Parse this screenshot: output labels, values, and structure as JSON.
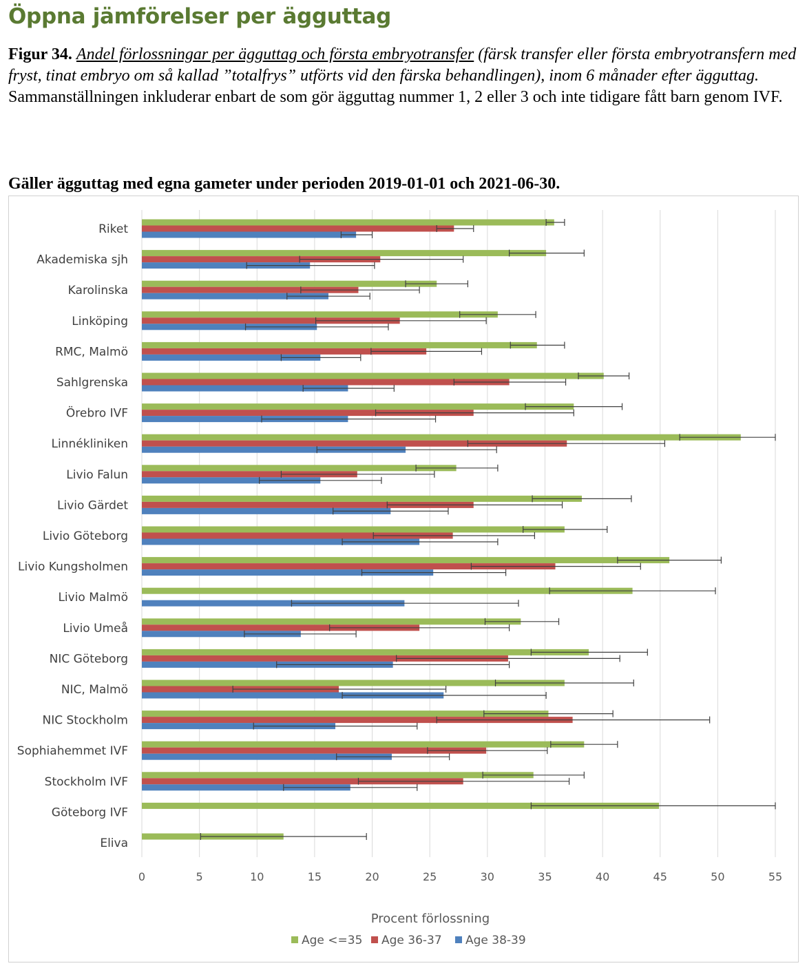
{
  "header": {
    "title": "Öppna jämförelser per ägguttag",
    "figure_label": "Figur 34.",
    "figure_title": "Andel förlossningar per ägguttag och första embryotransfer",
    "figure_desc": " (färsk transfer eller första embryotransfern med fryst, tinat embryo om så kallad ”totalfrys” utförts vid den färska behandlingen), inom 6 månader efter ägguttag.",
    "scope": "Sammanställningen inkluderar enbart de som gör ägguttag nummer 1, 2 eller 3 och inte tidigare fått barn genom IVF.",
    "period": "Gäller ägguttag med egna gameter under perioden 2019-01-01 och 2021-06-30."
  },
  "colors": {
    "age_le35": "#9bbb59",
    "age_36_37": "#c0504d",
    "age_38_39": "#4f81bd",
    "grid": "#d9d9d9",
    "error_bar": "#404040",
    "text": "#404040"
  },
  "chart_data": {
    "type": "bar",
    "orientation": "horizontal",
    "title": "",
    "xlabel": "Procent förlossning",
    "ylabel": "",
    "xlim": [
      0,
      55
    ],
    "xticks": [
      0,
      5,
      10,
      15,
      20,
      25,
      30,
      35,
      40,
      45,
      50,
      55
    ],
    "grid": "vertical",
    "legend_position": "bottom",
    "categories": [
      "Riket",
      "Akademiska sjh",
      "Karolinska",
      "Linköping",
      "RMC, Malmö",
      "Sahlgrenska",
      "Örebro IVF",
      "Linnékliniken",
      "Livio Falun",
      "Livio Gärdet",
      "Livio Göteborg",
      "Livio Kungsholmen",
      "Livio Malmö",
      "Livio Umeå",
      "NIC Göteborg",
      "NIC, Malmö",
      "NIC Stockholm",
      "Sophiahemmet IVF",
      "Stockholm IVF",
      "Göteborg IVF",
      "Eliva"
    ],
    "series": [
      {
        "name": "Age <=35",
        "values": [
          35.8,
          35.1,
          25.6,
          30.9,
          34.3,
          40.1,
          37.5,
          52.0,
          27.3,
          38.2,
          36.7,
          45.8,
          42.6,
          32.9,
          38.8,
          36.7,
          35.3,
          38.4,
          34.0,
          44.9,
          12.3
        ],
        "err_low": [
          35.1,
          31.9,
          22.9,
          27.6,
          32.0,
          37.9,
          33.3,
          46.7,
          23.8,
          33.9,
          33.1,
          41.3,
          35.4,
          29.8,
          33.8,
          30.7,
          29.7,
          35.5,
          29.6,
          33.8,
          5.1
        ],
        "err_high": [
          36.7,
          38.4,
          28.3,
          34.2,
          36.7,
          42.3,
          41.7,
          55.0,
          30.9,
          42.5,
          40.4,
          50.3,
          49.8,
          36.2,
          43.9,
          42.7,
          40.9,
          41.3,
          38.4,
          55.0,
          19.5
        ]
      },
      {
        "name": "Age 36-37",
        "values": [
          27.1,
          20.7,
          18.8,
          22.4,
          24.7,
          31.9,
          28.8,
          36.9,
          18.7,
          28.8,
          27.0,
          35.9,
          null,
          24.1,
          31.8,
          17.1,
          37.4,
          29.9,
          27.9,
          null,
          null
        ],
        "err_low": [
          25.6,
          13.7,
          13.8,
          15.1,
          19.9,
          27.1,
          20.3,
          28.3,
          12.1,
          21.3,
          20.1,
          28.6,
          null,
          16.3,
          22.1,
          7.9,
          25.6,
          24.8,
          18.8,
          null,
          null
        ],
        "err_high": [
          28.8,
          27.9,
          24.1,
          29.9,
          29.5,
          36.8,
          37.5,
          45.4,
          25.4,
          36.5,
          34.1,
          43.3,
          null,
          31.9,
          41.5,
          26.4,
          49.3,
          35.2,
          37.1,
          null,
          null
        ]
      },
      {
        "name": "Age 38-39",
        "values": [
          18.6,
          14.6,
          16.2,
          15.2,
          15.5,
          17.9,
          17.9,
          22.9,
          15.5,
          21.6,
          24.1,
          25.3,
          22.8,
          13.8,
          21.8,
          26.2,
          16.8,
          21.7,
          18.1,
          null,
          null
        ],
        "err_low": [
          17.3,
          9.1,
          12.6,
          9.0,
          12.1,
          14.0,
          10.4,
          15.2,
          10.2,
          16.6,
          17.4,
          19.1,
          13.0,
          8.9,
          11.7,
          17.4,
          9.7,
          16.9,
          12.3,
          null,
          null
        ],
        "err_high": [
          20.0,
          20.2,
          19.8,
          21.4,
          19.0,
          21.9,
          25.5,
          30.8,
          20.8,
          26.6,
          30.9,
          31.6,
          32.7,
          18.6,
          31.9,
          35.1,
          23.9,
          26.7,
          23.9,
          null,
          null
        ]
      }
    ]
  }
}
